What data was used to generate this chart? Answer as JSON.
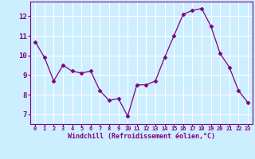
{
  "x": [
    0,
    1,
    2,
    3,
    4,
    5,
    6,
    7,
    8,
    9,
    10,
    11,
    12,
    13,
    14,
    15,
    16,
    17,
    18,
    19,
    20,
    21,
    22,
    23
  ],
  "y": [
    10.7,
    9.9,
    8.7,
    9.5,
    9.2,
    9.1,
    9.2,
    8.2,
    7.7,
    7.8,
    6.9,
    8.5,
    8.5,
    8.7,
    9.9,
    11.0,
    12.1,
    12.3,
    12.4,
    11.5,
    10.1,
    9.4,
    8.2,
    7.6
  ],
  "line_color": "#800080",
  "marker": "D",
  "marker_size": 2.5,
  "bg_color": "#cceeff",
  "grid_color": "#ffffff",
  "xlabel": "Windchill (Refroidissement éolien,°C)",
  "xlabel_color": "#800080",
  "tick_color": "#800080",
  "ylim": [
    6.5,
    12.75
  ],
  "yticks": [
    7,
    8,
    9,
    10,
    11,
    12
  ],
  "xlim": [
    -0.5,
    23.5
  ],
  "figsize": [
    3.2,
    2.0
  ],
  "dpi": 100
}
